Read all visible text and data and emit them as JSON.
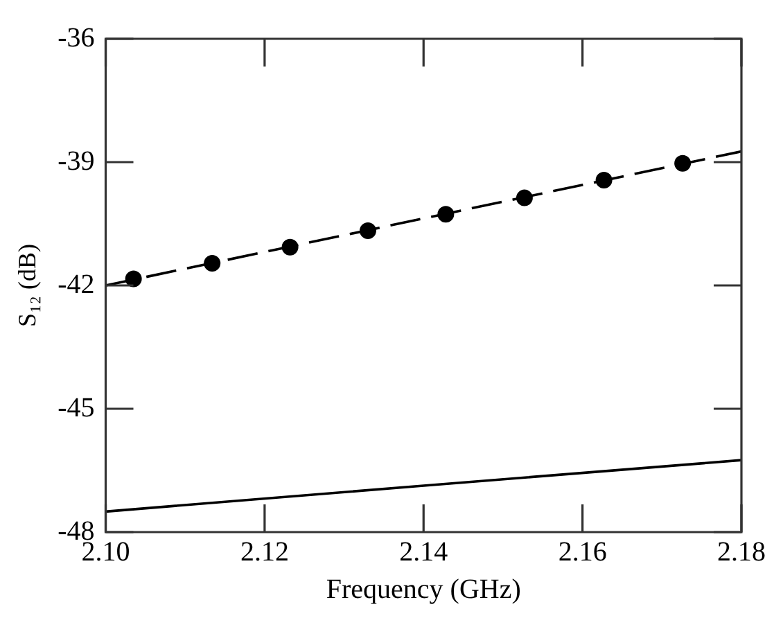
{
  "chart_data": {
    "type": "line",
    "xlabel": "Frequency (GHz)",
    "ylabel": "S₁₂ (dB)",
    "xlim": [
      2.1,
      2.18
    ],
    "xticks": [
      {
        "value": 2.1,
        "label": "2.10"
      },
      {
        "value": 2.12,
        "label": "2.12"
      },
      {
        "value": 2.14,
        "label": "2.14"
      },
      {
        "value": 2.16,
        "label": "2.16"
      },
      {
        "value": 2.18,
        "label": "2.18"
      }
    ],
    "ylim": [
      -48,
      -36
    ],
    "yticks": [
      -48,
      -45,
      -42,
      -39,
      -36
    ],
    "grid": false,
    "legend": false,
    "series": [
      {
        "color": "#000000",
        "line_style": "dashed",
        "marker": "none",
        "x": [
          2.1,
          2.18
        ],
        "values": [
          -42.0,
          -38.74
        ]
      },
      {
        "type": "scatter",
        "color": "#000000",
        "marker": "circle",
        "x": [
          2.1035,
          2.1134,
          2.1232,
          2.133,
          2.1428,
          2.1527,
          2.1627,
          2.1726
        ],
        "values": [
          -41.84,
          -41.46,
          -41.07,
          -40.67,
          -40.27,
          -39.87,
          -39.44,
          -39.03
        ]
      },
      {
        "color": "#000000",
        "line_style": "solid",
        "marker": "none",
        "x": [
          2.1,
          2.14,
          2.18
        ],
        "values": [
          -47.5,
          -46.87,
          -46.25
        ]
      }
    ]
  }
}
